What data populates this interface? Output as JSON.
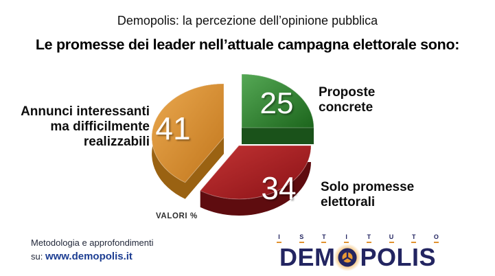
{
  "header": {
    "subtitle": "Demopolis: la percezione dell’opinione pubblica",
    "title": "Le promesse dei leader nell’attuale campagna elettorale sono:"
  },
  "chart_data": {
    "type": "pie",
    "style": "3d-exploded",
    "title": "Le promesse dei leader nell’attuale campagna elettorale sono:",
    "values_note": "VALORI %",
    "slices": [
      {
        "label": "Proposte concrete",
        "value": 25,
        "color": "#2e8b2e"
      },
      {
        "label": "Solo promesse elettorali",
        "value": 34,
        "color": "#a92428"
      },
      {
        "label": "Annunci interessanti ma difficilmente realizzabili",
        "value": 41,
        "color": "#d3852c"
      }
    ],
    "legend_position": "outside-callouts"
  },
  "pie_labels": {
    "left": {
      "lines": [
        "Annunci interessanti",
        "ma difficilmente",
        "realizzabili"
      ]
    },
    "top_right": {
      "lines": [
        "Proposte",
        "concrete"
      ]
    },
    "bottom_right": {
      "lines": [
        "Solo promesse",
        "elettorali"
      ]
    },
    "values_note": "VALORI %"
  },
  "footer": {
    "methodology_line": "Metodologia e approfondimenti",
    "link_prefix": "su: ",
    "link_text": "www.demopolis.it",
    "link_color": "#1c3d92"
  },
  "logo": {
    "istituto": "ISTITUTO",
    "name_pre": "DEM",
    "name_post": "POLIS",
    "navy": "#232561",
    "orange": "#e8993a"
  }
}
